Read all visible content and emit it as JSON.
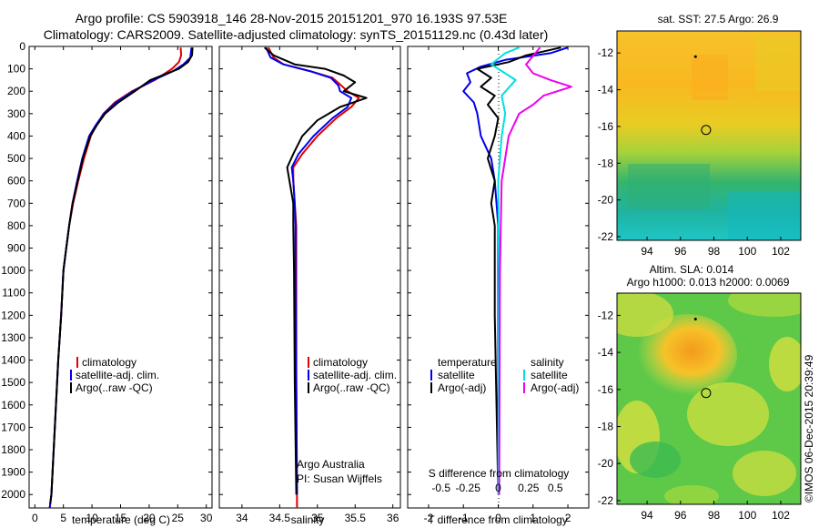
{
  "figure": {
    "title_line1": "Argo profile: CS 5903918_146 28-Nov-2015 20151201_970 16.193S 97.53E",
    "title_line2": "Climatology: CARS2009. Satellite-adjusted climatology: synTS_20151129.nc (0.43d later)",
    "side_stamp": "©IMOS 06-Dec-2015 20:39:49"
  },
  "colors": {
    "climatology": "#e00000",
    "satellite": "#0000ee",
    "argo": "#000000",
    "sal_sat": "#00e0e0",
    "sal_argo": "#ee00ee"
  },
  "depth_axis": {
    "ylim": [
      0,
      2060
    ],
    "ticks": [
      0,
      100,
      200,
      300,
      400,
      500,
      600,
      700,
      800,
      900,
      1000,
      1100,
      1200,
      1300,
      1400,
      1500,
      1600,
      1700,
      1800,
      1900,
      2000
    ]
  },
  "panels": {
    "temperature": {
      "xlabel": "temperature (deg C)",
      "xlim": [
        -1,
        31
      ],
      "xticks": [
        0,
        5,
        10,
        15,
        20,
        25,
        30
      ],
      "legend": [
        "climatology",
        "satellite-adj. clim.",
        "Argo(..raw -QC)"
      ],
      "series": [
        {
          "name": "climatology",
          "color_key": "climatology",
          "points": [
            [
              25.5,
              5
            ],
            [
              25.6,
              40
            ],
            [
              25.2,
              70
            ],
            [
              24,
              100
            ],
            [
              21,
              150
            ],
            [
              17,
              200
            ],
            [
              14,
              250
            ],
            [
              12,
              300
            ],
            [
              10.8,
              350
            ],
            [
              9.8,
              400
            ],
            [
              8.6,
              500
            ],
            [
              7.6,
              600
            ],
            [
              6.7,
              700
            ],
            [
              6.0,
              800
            ],
            [
              5.5,
              900
            ],
            [
              5.0,
              1000
            ],
            [
              4.6,
              1200
            ],
            [
              4.1,
              1400
            ],
            [
              3.7,
              1600
            ],
            [
              3.3,
              1800
            ],
            [
              2.9,
              2000
            ],
            [
              2.6,
              2060
            ]
          ]
        },
        {
          "name": "satellite-adj. clim.",
          "color_key": "satellite",
          "points": [
            [
              27.4,
              5
            ],
            [
              27.2,
              50
            ],
            [
              26.0,
              80
            ],
            [
              24.2,
              110
            ],
            [
              20.8,
              150
            ],
            [
              17.2,
              200
            ],
            [
              14.2,
              250
            ],
            [
              12.1,
              300
            ],
            [
              10.7,
              350
            ],
            [
              9.5,
              400
            ],
            [
              8.3,
              500
            ],
            [
              7.4,
              600
            ],
            [
              6.6,
              700
            ],
            [
              6.0,
              800
            ],
            [
              5.5,
              900
            ],
            [
              5.0,
              1000
            ],
            [
              4.6,
              1200
            ],
            [
              4.1,
              1400
            ],
            [
              3.7,
              1600
            ],
            [
              3.3,
              1800
            ],
            [
              2.9,
              2000
            ],
            [
              2.6,
              2060
            ]
          ]
        },
        {
          "name": "Argo(..raw -QC)",
          "color_key": "argo",
          "points": [
            [
              27.6,
              5
            ],
            [
              27.5,
              40
            ],
            [
              26.8,
              70
            ],
            [
              25.2,
              100
            ],
            [
              20.2,
              150
            ],
            [
              17.5,
              200
            ],
            [
              14.6,
              250
            ],
            [
              12.3,
              300
            ],
            [
              10.9,
              350
            ],
            [
              9.7,
              400
            ],
            [
              8.4,
              500
            ],
            [
              7.5,
              600
            ],
            [
              6.6,
              700
            ],
            [
              6.0,
              800
            ],
            [
              5.5,
              900
            ],
            [
              5.0,
              1000
            ],
            [
              4.6,
              1200
            ],
            [
              4.1,
              1400
            ],
            [
              3.7,
              1600
            ],
            [
              3.3,
              1800
            ],
            [
              2.9,
              2000
            ],
            [
              2.7,
              2040
            ]
          ]
        }
      ]
    },
    "salinity": {
      "xlabel": "salinity",
      "xlim": [
        33.7,
        36.1
      ],
      "xticks": [
        34,
        34.5,
        35,
        35.5,
        36
      ],
      "xtick_labels": [
        "34",
        "34.5",
        "35",
        "35.5",
        "36"
      ],
      "legend": [
        "climatology",
        "satellite-adj. clim.",
        "Argo(..raw -QC)"
      ],
      "credit_line1": "Argo Australia",
      "credit_line2": "PI: Susan Wijffels",
      "series": [
        {
          "name": "climatology",
          "color_key": "climatology",
          "points": [
            [
              34.35,
              5
            ],
            [
              34.42,
              50
            ],
            [
              34.55,
              80
            ],
            [
              34.9,
              110
            ],
            [
              35.2,
              140
            ],
            [
              35.3,
              170
            ],
            [
              35.4,
              200
            ],
            [
              35.55,
              230
            ],
            [
              35.45,
              270
            ],
            [
              35.25,
              320
            ],
            [
              35.0,
              400
            ],
            [
              34.8,
              480
            ],
            [
              34.68,
              540
            ],
            [
              34.68,
              600
            ],
            [
              34.7,
              700
            ],
            [
              34.72,
              800
            ],
            [
              34.72,
              1000
            ],
            [
              34.72,
              1500
            ],
            [
              34.73,
              2060
            ]
          ]
        },
        {
          "name": "satellite-adj. clim.",
          "color_key": "satellite",
          "points": [
            [
              34.32,
              5
            ],
            [
              34.38,
              50
            ],
            [
              34.55,
              80
            ],
            [
              34.9,
              110
            ],
            [
              35.18,
              140
            ],
            [
              35.28,
              175
            ],
            [
              35.3,
              200
            ],
            [
              35.45,
              230
            ],
            [
              35.4,
              270
            ],
            [
              35.2,
              320
            ],
            [
              34.95,
              400
            ],
            [
              34.75,
              480
            ],
            [
              34.66,
              540
            ],
            [
              34.68,
              600
            ],
            [
              34.7,
              700
            ],
            [
              34.71,
              800
            ],
            [
              34.71,
              1000
            ],
            [
              34.72,
              1500
            ],
            [
              34.73,
              2000
            ]
          ]
        },
        {
          "name": "Argo(..raw -QC)",
          "color_key": "argo",
          "points": [
            [
              34.3,
              5
            ],
            [
              34.42,
              40
            ],
            [
              34.7,
              80
            ],
            [
              35.1,
              100
            ],
            [
              35.35,
              130
            ],
            [
              35.5,
              160
            ],
            [
              35.35,
              200
            ],
            [
              35.65,
              230
            ],
            [
              35.3,
              270
            ],
            [
              35.0,
              330
            ],
            [
              34.8,
              400
            ],
            [
              34.68,
              480
            ],
            [
              34.6,
              540
            ],
            [
              34.63,
              600
            ],
            [
              34.68,
              700
            ],
            [
              34.68,
              800
            ],
            [
              34.69,
              1000
            ],
            [
              34.7,
              1500
            ],
            [
              34.72,
              2000
            ]
          ]
        }
      ]
    },
    "difference": {
      "xlabel": "T difference from climatology",
      "xlim": [
        -2.6,
        2.6
      ],
      "xticks": [
        -2,
        -1,
        0,
        1,
        2
      ],
      "xtick_labels": [
        "-2",
        "-1",
        "0",
        "1",
        "2"
      ],
      "s_label": "S difference from climatology",
      "s_ticks": [
        "-0.5",
        "-0.25",
        "0",
        "0.25",
        "0.5"
      ],
      "legend_temp_header": "temperature",
      "legend_sal_header": "salinity",
      "legend_items": [
        "satellite",
        "Argo(-adj)",
        "satellite",
        "Argo(-adj)"
      ],
      "series": [
        {
          "name": "temperature satellite",
          "color_key": "satellite",
          "points": [
            [
              2.0,
              5
            ],
            [
              1.5,
              30
            ],
            [
              0.2,
              60
            ],
            [
              -0.5,
              90
            ],
            [
              -0.9,
              120
            ],
            [
              -0.8,
              160
            ],
            [
              -1.0,
              200
            ],
            [
              -0.7,
              250
            ],
            [
              -0.6,
              300
            ],
            [
              -0.5,
              400
            ],
            [
              -0.2,
              500
            ],
            [
              -0.1,
              600
            ],
            [
              0,
              800
            ],
            [
              0,
              1200
            ],
            [
              0,
              2000
            ]
          ]
        },
        {
          "name": "temperature Argo(-adj)",
          "color_key": "argo",
          "points": [
            [
              1.8,
              5
            ],
            [
              0.8,
              40
            ],
            [
              0.3,
              70
            ],
            [
              -0.6,
              100
            ],
            [
              -0.2,
              140
            ],
            [
              -0.5,
              180
            ],
            [
              -0.1,
              220
            ],
            [
              -0.3,
              260
            ],
            [
              0,
              320
            ],
            [
              -0.1,
              400
            ],
            [
              -0.3,
              500
            ],
            [
              -0.1,
              600
            ],
            [
              -0.2,
              700
            ],
            [
              -0.1,
              800
            ],
            [
              -0.1,
              1200
            ],
            [
              0,
              2000
            ]
          ]
        },
        {
          "name": "salinity satellite",
          "color_key": "sal_sat",
          "points": [
            [
              0.6,
              5
            ],
            [
              0.2,
              30
            ],
            [
              -0.2,
              80
            ],
            [
              0.5,
              150
            ],
            [
              0.1,
              220
            ],
            [
              0.2,
              300
            ],
            [
              0.1,
              400
            ],
            [
              0,
              600
            ],
            [
              0.02,
              1000
            ],
            [
              0,
              2000
            ]
          ]
        },
        {
          "name": "salinity Argo(-adj)",
          "color_key": "sal_argo",
          "points": [
            [
              1.2,
              5
            ],
            [
              0.8,
              80
            ],
            [
              1.0,
              120
            ],
            [
              1.5,
              150
            ],
            [
              2.1,
              180
            ],
            [
              1.3,
              220
            ],
            [
              1.0,
              260
            ],
            [
              0.6,
              300
            ],
            [
              0.3,
              400
            ],
            [
              0.1,
              600
            ],
            [
              0.05,
              1000
            ],
            [
              0.03,
              2000
            ]
          ]
        }
      ]
    }
  },
  "maps": {
    "sst": {
      "title": "sat. SST: 27.5 Argo: 26.9",
      "xlim": [
        92.2,
        103.2
      ],
      "ylim": [
        -22.2,
        -10.8
      ],
      "xticks": [
        94,
        96,
        98,
        100,
        102
      ],
      "yticks": [
        -12,
        -14,
        -16,
        -18,
        -20,
        -22
      ],
      "argo_marker": {
        "lon": 97.53,
        "lat": -16.19
      },
      "dot": {
        "lon": 96.9,
        "lat": -12.2
      }
    },
    "sla": {
      "title1": "Altim. SLA: 0.014",
      "title2": "Argo h1000: 0.013 h2000: 0.0069",
      "xlim": [
        92.2,
        103.2
      ],
      "ylim": [
        -22.2,
        -10.8
      ],
      "xticks": [
        94,
        96,
        98,
        100,
        102
      ],
      "yticks": [
        -12,
        -14,
        -16,
        -18,
        -20,
        -22
      ],
      "argo_marker": {
        "lon": 97.53,
        "lat": -16.19
      },
      "dot": {
        "lon": 96.9,
        "lat": -12.2
      }
    }
  }
}
